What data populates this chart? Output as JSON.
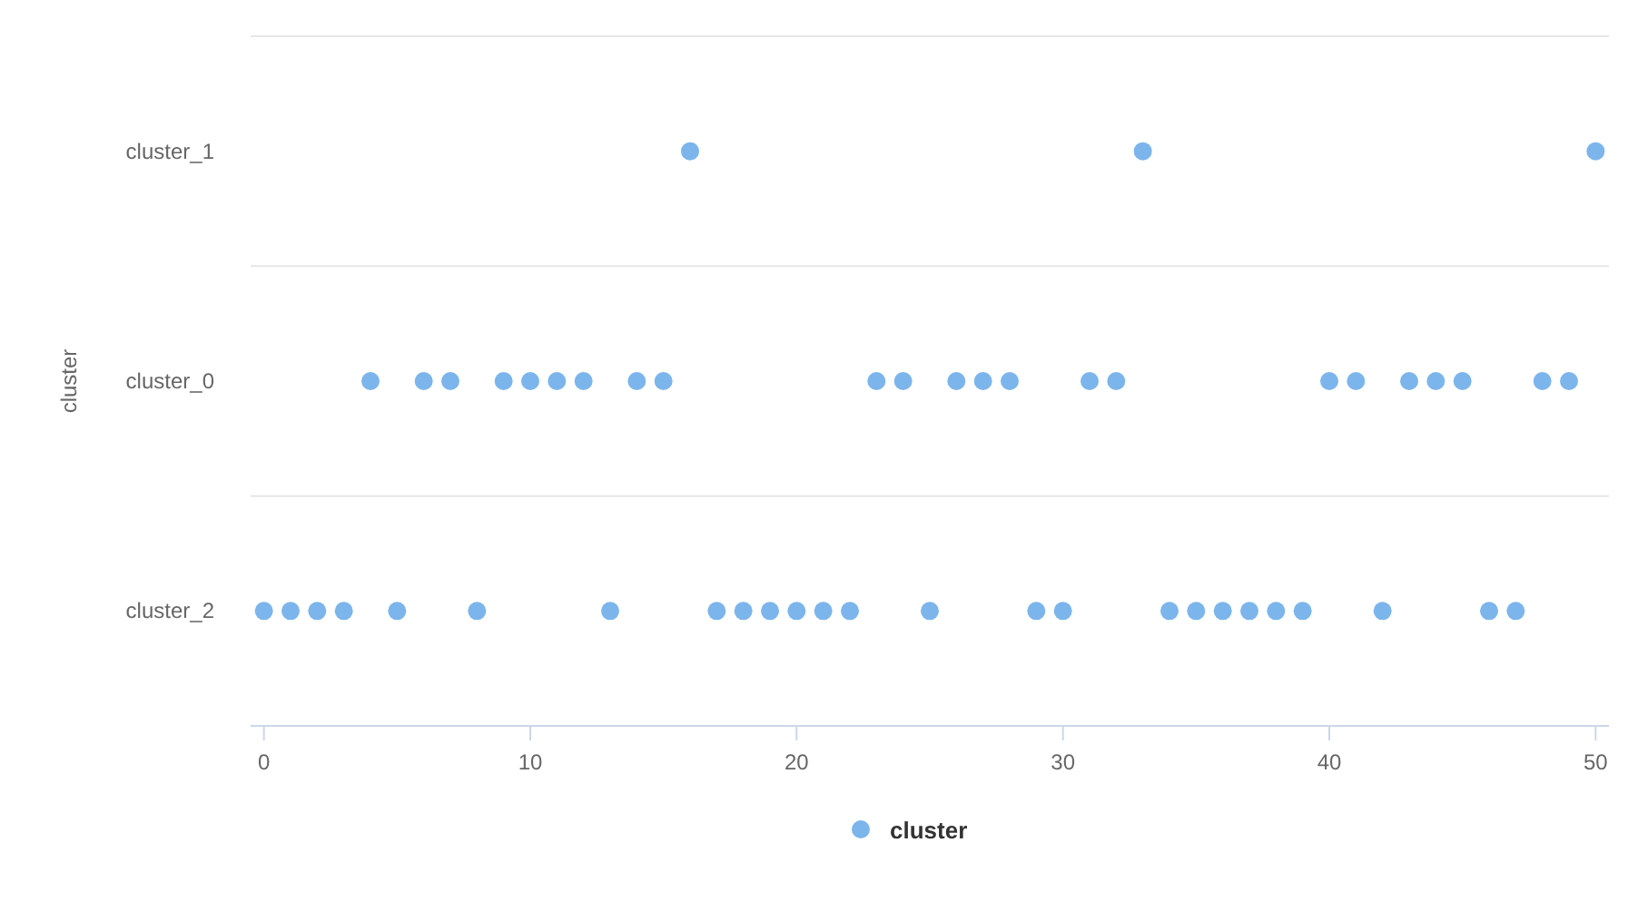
{
  "chart_data": {
    "type": "scatter",
    "orientation": "horizontal",
    "ylabel": "cluster",
    "categories": [
      "cluster_1",
      "cluster_0",
      "cluster_2"
    ],
    "xlim": [
      -0.5,
      50.5
    ],
    "xticks": [
      0,
      10,
      20,
      30,
      40,
      50
    ],
    "grid": "y",
    "legend": "bottom",
    "marker": "circle",
    "series": [
      {
        "name": "cluster",
        "color": "#7cb5ec",
        "values": [
          0,
          1,
          2,
          3,
          4,
          5,
          6,
          7,
          8,
          9,
          10,
          11,
          12,
          13,
          14,
          15,
          16,
          17,
          18,
          19,
          20,
          21,
          22,
          23,
          24,
          25,
          26,
          27,
          28,
          29,
          30,
          31,
          32,
          33,
          34,
          35,
          36,
          37,
          38,
          39,
          40,
          41,
          42,
          43,
          44,
          45,
          46,
          47,
          48,
          49,
          50
        ],
        "x": [
          "cluster_2",
          "cluster_2",
          "cluster_2",
          "cluster_2",
          "cluster_0",
          "cluster_2",
          "cluster_0",
          "cluster_0",
          "cluster_2",
          "cluster_0",
          "cluster_0",
          "cluster_0",
          "cluster_0",
          "cluster_2",
          "cluster_0",
          "cluster_0",
          "cluster_1",
          "cluster_2",
          "cluster_2",
          "cluster_2",
          "cluster_2",
          "cluster_2",
          "cluster_2",
          "cluster_0",
          "cluster_0",
          "cluster_2",
          "cluster_0",
          "cluster_0",
          "cluster_0",
          "cluster_2",
          "cluster_2",
          "cluster_0",
          "cluster_0",
          "cluster_1",
          "cluster_2",
          "cluster_2",
          "cluster_2",
          "cluster_2",
          "cluster_2",
          "cluster_2",
          "cluster_0",
          "cluster_0",
          "cluster_2",
          "cluster_0",
          "cluster_0",
          "cluster_0",
          "cluster_2",
          "cluster_2",
          "cluster_0",
          "cluster_0",
          "cluster_1"
        ]
      }
    ]
  }
}
